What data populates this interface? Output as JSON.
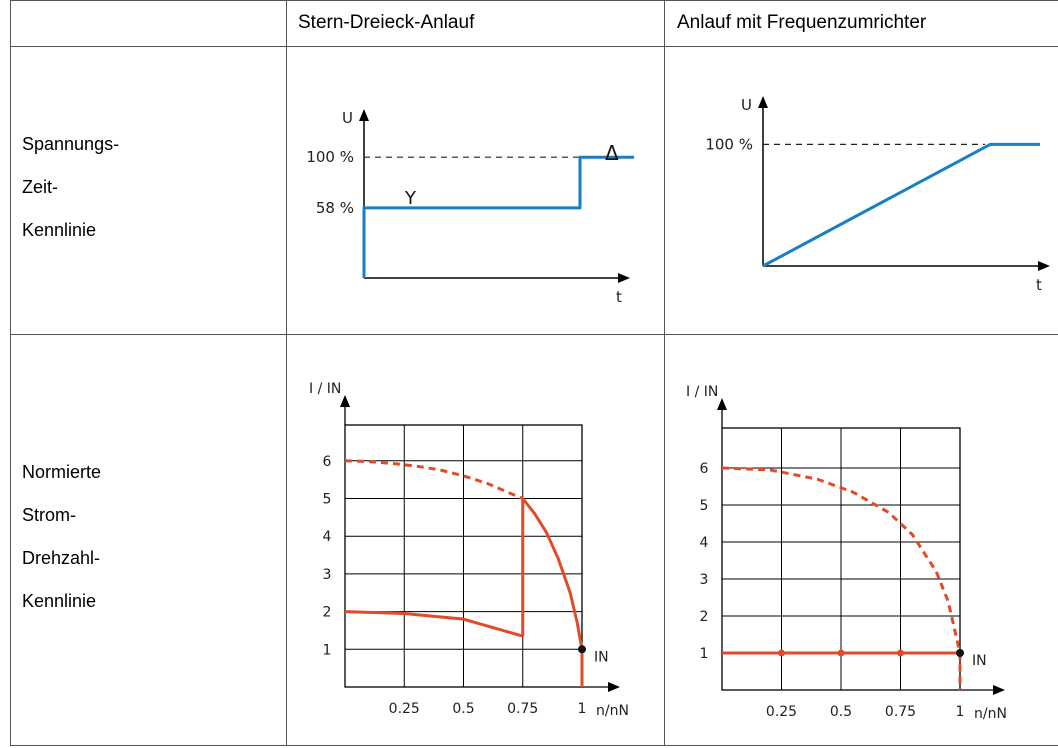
{
  "table": {
    "col_headers": [
      "Stern-Dreieck-Anlauf",
      "Anlauf mit Frequenzumrichter"
    ],
    "row_labels": [
      [
        "Spannungs-",
        "Zeit-",
        "Kennlinie"
      ],
      [
        "Normierte",
        "Strom-",
        "Drehzahl-",
        "Kennlinie"
      ]
    ]
  },
  "colors": {
    "voltage_line": "#1a7fc1",
    "current_line": "#e24a28",
    "grid": "#000000"
  },
  "chart_data": [
    {
      "type": "line",
      "panel": "Stern-Dreieck-Anlauf / Spannungs-Zeit-Kennlinie",
      "ylabel": "U",
      "xlabel": "t",
      "yticks": [
        "58 %",
        "100 %"
      ],
      "markers": [
        "Y",
        "Δ"
      ],
      "series": [
        {
          "x": [
            0,
            0,
            0.8,
            0.8,
            1.0
          ],
          "y": [
            0,
            58,
            58,
            100,
            100
          ]
        }
      ],
      "reference_line": {
        "y": 100,
        "style": "dashed"
      },
      "ylim": [
        0,
        125
      ],
      "xlim": [
        0,
        1.1
      ]
    },
    {
      "type": "line",
      "panel": "Anlauf mit Frequenzumrichter / Spannungs-Zeit-Kennlinie",
      "ylabel": "U",
      "xlabel": "t",
      "yticks": [
        "100 %"
      ],
      "series": [
        {
          "x": [
            0,
            0.82,
            1.0
          ],
          "y": [
            0,
            100,
            100
          ]
        }
      ],
      "reference_line": {
        "y": 100,
        "style": "dashed"
      },
      "ylim": [
        0,
        125
      ],
      "xlim": [
        0,
        1.05
      ]
    },
    {
      "type": "line",
      "panel": "Stern-Dreieck-Anlauf / Normierte Strom-Drehzahl-Kennlinie",
      "ylabel": "I / IN",
      "xlabel": "n/nN",
      "xticks": [
        "0.25",
        "0.5",
        "0.75",
        "1"
      ],
      "yticks": [
        "1",
        "2",
        "3",
        "4",
        "5",
        "6"
      ],
      "annotation": "IN",
      "series": [
        {
          "style": "dashed",
          "x": [
            0,
            0.1,
            0.2,
            0.3,
            0.4,
            0.5,
            0.6,
            0.7,
            0.75
          ],
          "y": [
            6,
            5.98,
            5.93,
            5.86,
            5.76,
            5.6,
            5.4,
            5.13,
            5.0
          ]
        },
        {
          "style": "solid",
          "x": [
            0,
            0.25,
            0.5,
            0.75
          ],
          "y": [
            2.0,
            1.95,
            1.8,
            1.35
          ]
        },
        {
          "style": "solid",
          "x": [
            0.75,
            0.75,
            0.8,
            0.85,
            0.9,
            0.95,
            0.98,
            1.0,
            1.0
          ],
          "y": [
            1.35,
            5.0,
            4.6,
            4.1,
            3.4,
            2.5,
            1.7,
            1.0,
            0
          ]
        }
      ],
      "point": {
        "x": 1.0,
        "y": 1.0
      },
      "xlim": [
        0,
        1.15
      ],
      "ylim": [
        0,
        7
      ]
    },
    {
      "type": "line",
      "panel": "Anlauf mit Frequenzumrichter / Normierte Strom-Drehzahl-Kennlinie",
      "ylabel": "I / IN",
      "xlabel": "n/nN",
      "xticks": [
        "0.25",
        "0.5",
        "0.75",
        "1"
      ],
      "yticks": [
        "1",
        "2",
        "3",
        "4",
        "5",
        "6"
      ],
      "annotation": "IN",
      "series": [
        {
          "style": "dashed",
          "x": [
            0,
            0.2,
            0.4,
            0.55,
            0.7,
            0.8,
            0.9,
            0.95,
            1.0,
            1.0
          ],
          "y": [
            6,
            5.95,
            5.7,
            5.35,
            4.8,
            4.2,
            3.2,
            2.4,
            1.0,
            0
          ]
        },
        {
          "style": "solid",
          "x": [
            0,
            0.25,
            0.5,
            0.75,
            1.0
          ],
          "y": [
            1,
            1,
            1,
            1,
            1
          ]
        }
      ],
      "point": {
        "x": 1.0,
        "y": 1.0
      },
      "xlim": [
        0,
        1.15
      ],
      "ylim": [
        0,
        7
      ]
    }
  ]
}
